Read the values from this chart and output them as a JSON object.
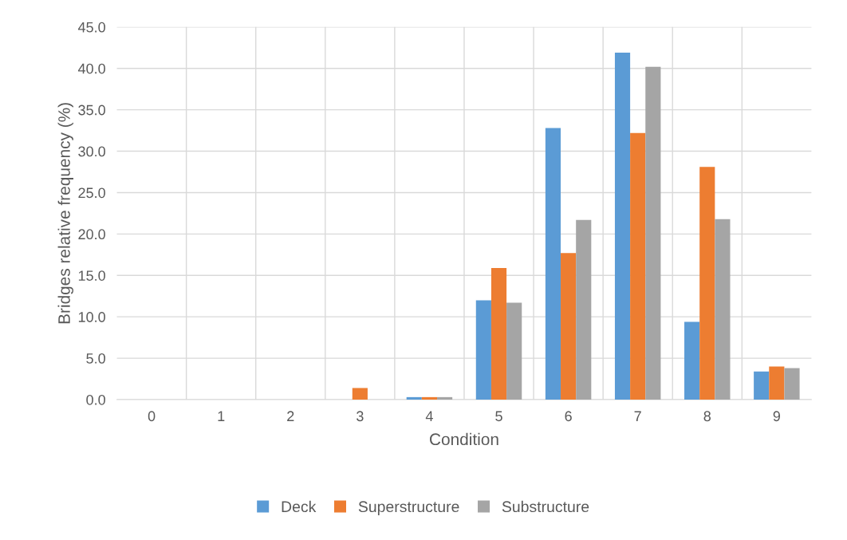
{
  "chart_data": {
    "type": "bar",
    "xlabel": "Condition",
    "ylabel": "Bridges relative frequency (%)",
    "categories": [
      "0",
      "1",
      "2",
      "3",
      "4",
      "5",
      "6",
      "7",
      "8",
      "9"
    ],
    "series": [
      {
        "name": "Deck",
        "color": "#5b9bd5",
        "values": [
          0,
          0,
          0,
          0,
          0.3,
          12.0,
          32.8,
          41.9,
          9.4,
          3.4
        ]
      },
      {
        "name": "Superstructure",
        "color": "#ed7d31",
        "values": [
          0,
          0,
          0,
          1.4,
          0.3,
          15.9,
          17.7,
          32.2,
          28.1,
          4.0
        ]
      },
      {
        "name": "Substructure",
        "color": "#a5a5a5",
        "values": [
          0,
          0,
          0,
          0,
          0.3,
          11.7,
          21.7,
          40.2,
          21.8,
          3.8
        ]
      }
    ],
    "ylim": [
      0,
      45
    ],
    "yticks": [
      {
        "value": 0,
        "label": "0.0"
      },
      {
        "value": 5,
        "label": "5.0"
      },
      {
        "value": 10,
        "label": "10.0"
      },
      {
        "value": 15,
        "label": "15.0"
      },
      {
        "value": 20,
        "label": "20.0"
      },
      {
        "value": 25,
        "label": "25.0"
      },
      {
        "value": 30,
        "label": "30.0"
      },
      {
        "value": 35,
        "label": "35.0"
      },
      {
        "value": 40,
        "label": "40.0"
      },
      {
        "value": 45,
        "label": "45.0"
      }
    ],
    "grid": true,
    "legend": "bottom"
  }
}
